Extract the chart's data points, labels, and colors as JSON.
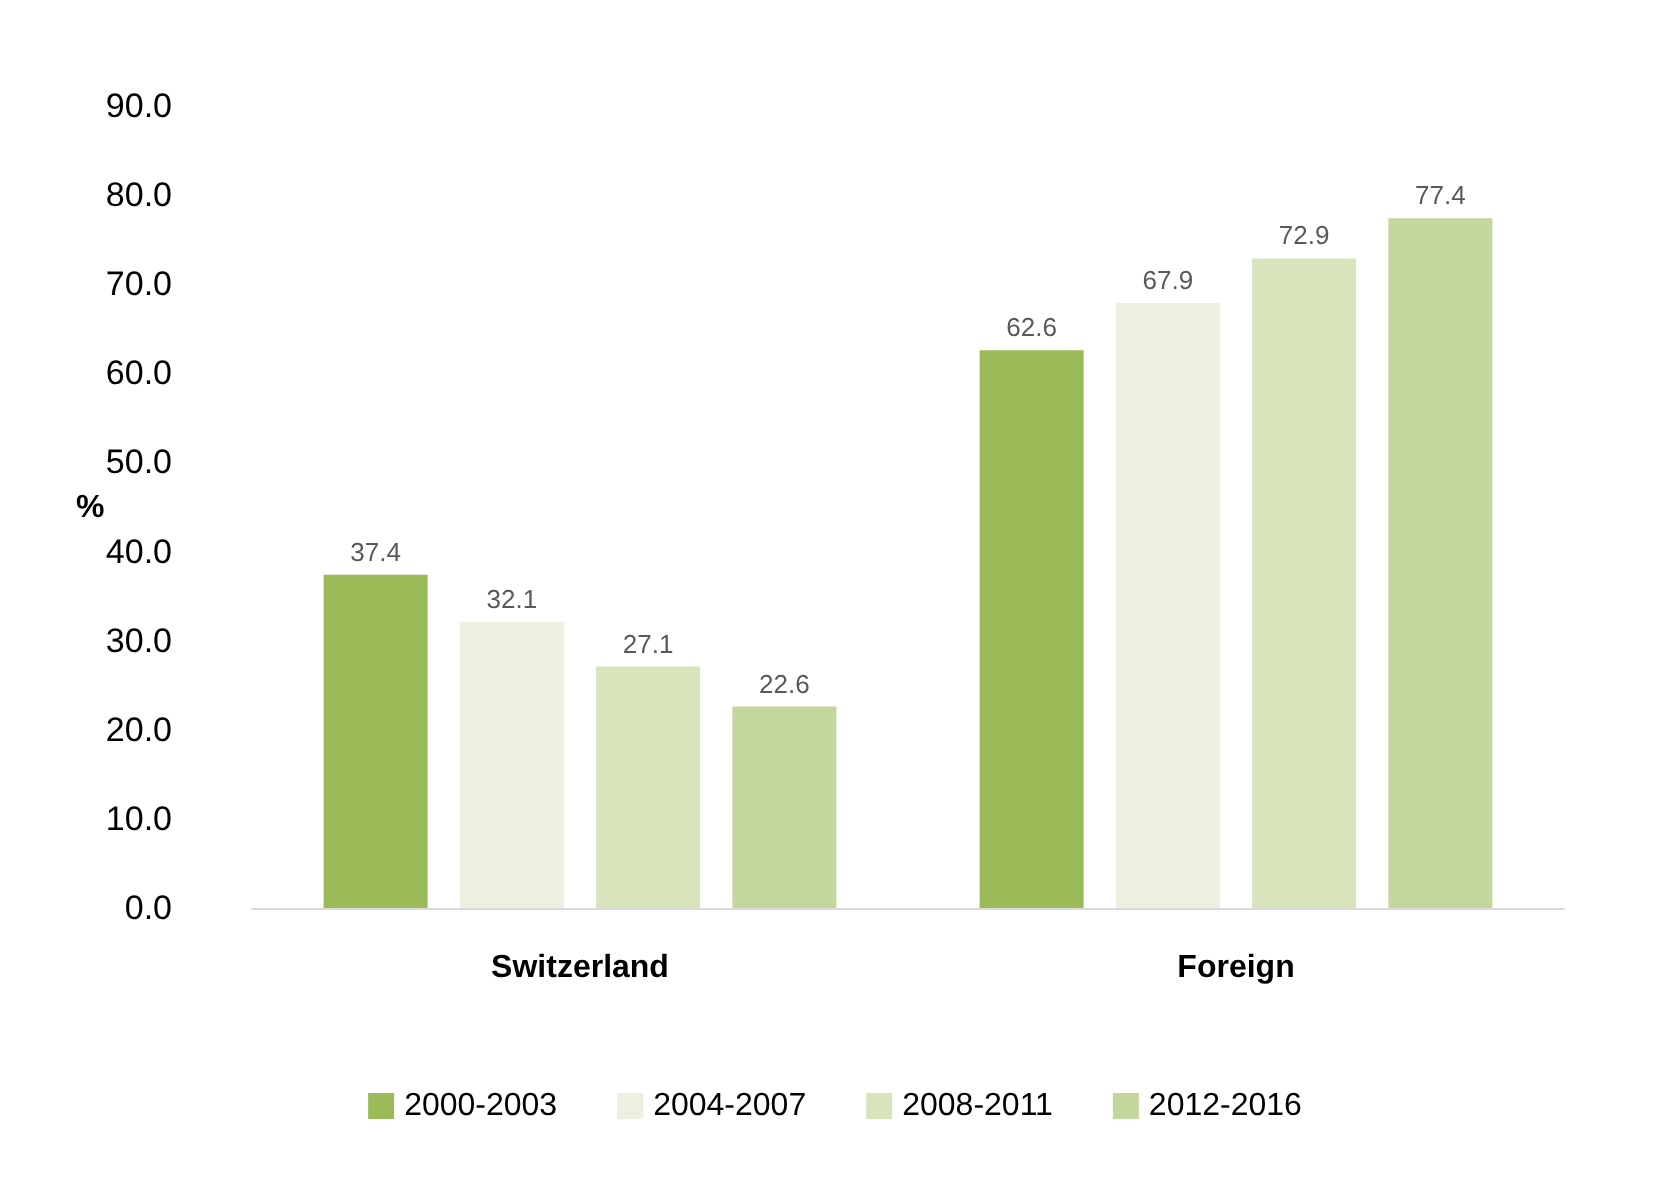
{
  "chart_data": {
    "type": "bar",
    "ylabel": "%",
    "categories": [
      "Switzerland",
      "Foreign"
    ],
    "series": [
      {
        "name": "2000-2003",
        "color": "#9bbb59",
        "values": [
          37.4,
          62.6
        ]
      },
      {
        "name": "2004-2007",
        "color": "#ebf1de",
        "values": [
          32.1,
          67.9
        ]
      },
      {
        "name": "2008-2011",
        "color": "#d7e4bc",
        "values": [
          27.1,
          72.9
        ]
      },
      {
        "name": "2012-2016",
        "color": "#c3d69b",
        "values": [
          22.6,
          77.4
        ]
      }
    ],
    "ylim": [
      0,
      90
    ],
    "yticks": [
      {
        "value": 0,
        "label": "0.0"
      },
      {
        "value": 10,
        "label": "10.0"
      },
      {
        "value": 20,
        "label": "20.0"
      },
      {
        "value": 30,
        "label": "30.0"
      },
      {
        "value": 40,
        "label": "40.0"
      },
      {
        "value": 50,
        "label": "50.0"
      },
      {
        "value": 60,
        "label": "60.0"
      },
      {
        "value": 70,
        "label": "70.0"
      },
      {
        "value": 80,
        "label": "80.0"
      },
      {
        "value": 90,
        "label": "90.0"
      }
    ],
    "grid": false,
    "legend": "bottom",
    "data_labels": true
  }
}
